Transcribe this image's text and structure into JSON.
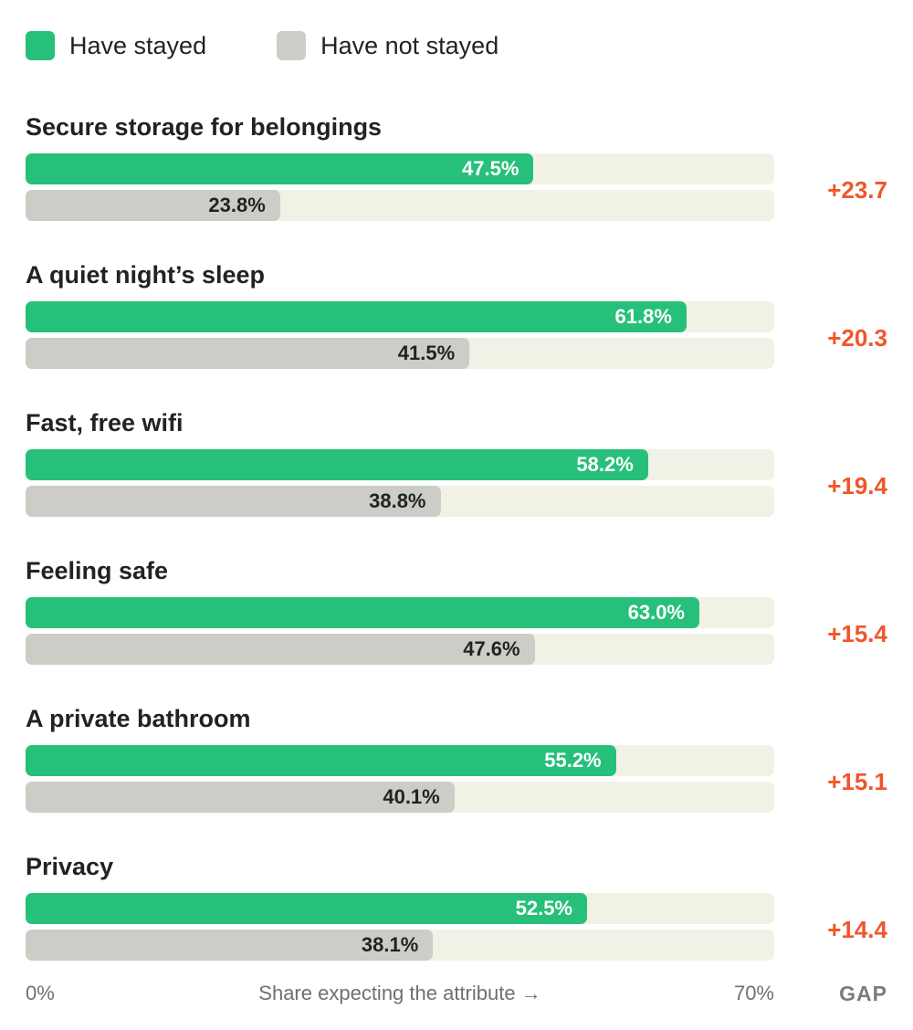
{
  "chart_data": {
    "type": "bar",
    "orientation": "horizontal",
    "xlim": [
      0,
      70
    ],
    "categories": [
      "Secure storage for belongings",
      "A quiet night’s sleep",
      "Fast, free wifi",
      "Feeling safe",
      "A private bathroom",
      "Privacy"
    ],
    "series": [
      {
        "name": "Have stayed",
        "color": "#27c07a",
        "values": [
          47.5,
          61.8,
          58.2,
          63.0,
          55.2,
          52.5
        ],
        "labels": [
          "47.5%",
          "61.8%",
          "58.2%",
          "63.0%",
          "55.2%",
          "52.5%"
        ]
      },
      {
        "name": "Have not stayed",
        "color": "#cbcdc6",
        "values": [
          23.8,
          41.5,
          38.8,
          47.6,
          40.1,
          38.1
        ],
        "labels": [
          "23.8%",
          "41.5%",
          "38.8%",
          "47.6%",
          "40.1%",
          "38.1%"
        ]
      }
    ],
    "gap": {
      "header": "GAP",
      "values": [
        23.7,
        20.3,
        19.4,
        15.4,
        15.1,
        14.4
      ],
      "labels": [
        "+23.7",
        "+20.3",
        "+19.4",
        "+15.4",
        "+15.1",
        "+14.4"
      ],
      "color": "#f0562a"
    },
    "axis": {
      "min_label": "0%",
      "max_label": "70%",
      "title": "Share expecting the attribute →"
    },
    "legend": "top-left"
  }
}
